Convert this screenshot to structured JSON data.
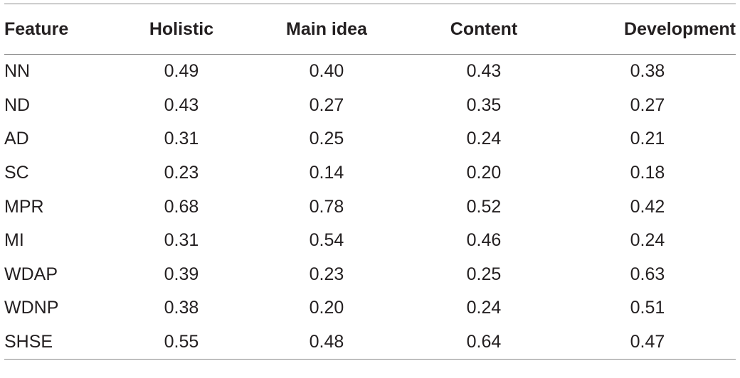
{
  "table": {
    "headers": [
      "Feature",
      "Holistic",
      "Main idea",
      "Content",
      "Development"
    ],
    "rows": [
      [
        "NN",
        "0.49",
        "0.40",
        "0.43",
        "0.38"
      ],
      [
        "ND",
        "0.43",
        "0.27",
        "0.35",
        "0.27"
      ],
      [
        "AD",
        "0.31",
        "0.25",
        "0.24",
        "0.21"
      ],
      [
        "SC",
        "0.23",
        "0.14",
        "0.20",
        "0.18"
      ],
      [
        "MPR",
        "0.68",
        "0.78",
        "0.52",
        "0.42"
      ],
      [
        "MI",
        "0.31",
        "0.54",
        "0.46",
        "0.24"
      ],
      [
        "WDAP",
        "0.39",
        "0.23",
        "0.25",
        "0.63"
      ],
      [
        "WDNP",
        "0.38",
        "0.20",
        "0.24",
        "0.51"
      ],
      [
        "SHSE",
        "0.55",
        "0.48",
        "0.64",
        "0.47"
      ]
    ]
  }
}
